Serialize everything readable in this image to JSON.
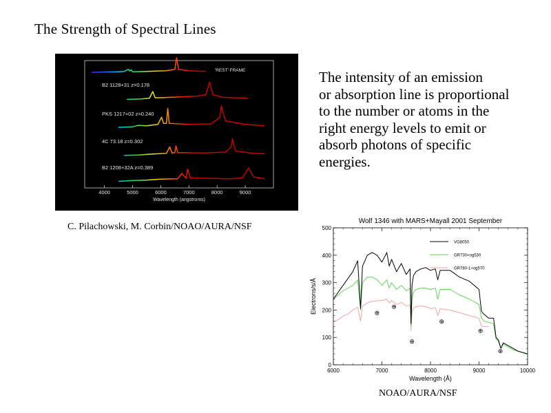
{
  "slide": {
    "title": "The Strength of Spectral Lines",
    "body_lines": [
      "The intensity of an emission",
      "or absorption line is proportional",
      "to the number or atoms in the",
      "right energy levels to emit or",
      "absorb photons of specific",
      "energies."
    ],
    "credit_left": "C. Pilachowski, M. Corbin/NOAO/AURA/NSF",
    "credit_right": "NOAO/AURA/NSF"
  },
  "chart_data": [
    {
      "type": "line",
      "title": "",
      "xlabel": "Wavelength (angstroms)",
      "ylabel": "",
      "xlim": [
        3300,
        10000
      ],
      "x_ticks": [
        4000,
        5000,
        6000,
        7000,
        8000,
        9000
      ],
      "annotation": "'REST' FRAME",
      "grid": false,
      "background": "#000000",
      "series": [
        {
          "name": "",
          "x": [
            3550,
            4000,
            4500,
            4700,
            4850,
            4900,
            4950,
            5000,
            5500,
            6200,
            6500,
            6563,
            6630,
            7000,
            7600
          ],
          "y": [
            0.12,
            0.14,
            0.16,
            0.18,
            0.3,
            0.2,
            0.28,
            0.16,
            0.18,
            0.22,
            0.3,
            1.0,
            0.3,
            0.22,
            0.18
          ]
        },
        {
          "name": "B2 1128+31  z=0.178",
          "x": [
            4800,
            5300,
            5600,
            5716,
            5800,
            6000,
            7300,
            7600,
            7731,
            7850,
            8200,
            9100
          ],
          "y": [
            0.12,
            0.14,
            0.18,
            0.5,
            0.2,
            0.2,
            0.28,
            0.35,
            0.95,
            0.35,
            0.22,
            0.18
          ]
        },
        {
          "name": "PKS 1217+02  z=0.240",
          "x": [
            4500,
            5000,
            5200,
            5500,
            5900,
            6030,
            6100,
            6200,
            6250,
            6300,
            7000,
            7800,
            8100,
            8150,
            8300,
            9000,
            9700
          ],
          "y": [
            0.14,
            0.16,
            0.22,
            0.2,
            0.26,
            0.55,
            0.3,
            0.3,
            0.9,
            0.3,
            0.26,
            0.28,
            0.55,
            1.0,
            0.4,
            0.26,
            0.2
          ]
        },
        {
          "name": "4C 73.18  z=0.302",
          "x": [
            4700,
            5200,
            5600,
            5900,
            6200,
            6320,
            6400,
            6500,
            6540,
            6600,
            7500,
            8300,
            8500,
            8546,
            8650,
            9300,
            9700
          ],
          "y": [
            0.14,
            0.16,
            0.2,
            0.22,
            0.24,
            0.55,
            0.25,
            0.28,
            0.6,
            0.28,
            0.26,
            0.3,
            0.55,
            0.95,
            0.35,
            0.24,
            0.22
          ]
        },
        {
          "name": "B2 1208+32A  z=0.389",
          "x": [
            4500,
            5000,
            5500,
            6000,
            6600,
            6750,
            6900,
            6950,
            7050,
            7500,
            8500,
            8900,
            9116,
            9300,
            9700
          ],
          "y": [
            0.14,
            0.18,
            0.2,
            0.24,
            0.26,
            0.5,
            0.28,
            0.7,
            0.3,
            0.28,
            0.26,
            0.3,
            0.75,
            0.34,
            0.26
          ]
        }
      ]
    },
    {
      "type": "line",
      "title": "Wolf 1346 with   MARS+Mayall 2001 September",
      "xlabel": "Wavelength (Å)",
      "ylabel": "Electrons/s/Å",
      "xlim": [
        6000,
        10000
      ],
      "ylim": [
        0,
        500
      ],
      "x_ticks": [
        6000,
        7000,
        8000,
        9000,
        10000
      ],
      "y_ticks": [
        0,
        100,
        200,
        300,
        400,
        500
      ],
      "legend": "top-right",
      "grid": false,
      "telluric_marker": "⊕",
      "telluric_bands": [
        {
          "x": 6900,
          "y": 190
        },
        {
          "x": 7250,
          "y": 212
        },
        {
          "x": 7620,
          "y": 85
        },
        {
          "x": 8230,
          "y": 158
        },
        {
          "x": 9030,
          "y": 125
        },
        {
          "x": 9440,
          "y": 50
        }
      ],
      "series": [
        {
          "name": "VG8050",
          "color": "#000000",
          "x": [
            6000,
            6200,
            6400,
            6500,
            6560,
            6600,
            6700,
            6800,
            6900,
            7000,
            7100,
            7150,
            7200,
            7300,
            7400,
            7500,
            7580,
            7600,
            7620,
            7650,
            7700,
            7800,
            7900,
            8000,
            8100,
            8150,
            8200,
            8300,
            8400,
            8600,
            8800,
            9000,
            9050,
            9100,
            9200,
            9300,
            9350,
            9400,
            9450,
            9500,
            9600,
            9700,
            9800,
            10000
          ],
          "y": [
            240,
            290,
            340,
            380,
            205,
            360,
            400,
            410,
            400,
            375,
            410,
            360,
            385,
            340,
            370,
            330,
            350,
            150,
            290,
            325,
            340,
            350,
            355,
            345,
            350,
            310,
            345,
            345,
            345,
            320,
            305,
            275,
            195,
            185,
            170,
            170,
            100,
            90,
            60,
            80,
            70,
            60,
            50,
            40
          ]
        },
        {
          "name": "GR730+og530",
          "color": "#5fd65a",
          "x": [
            6000,
            6200,
            6400,
            6500,
            6560,
            6600,
            6700,
            6800,
            6900,
            7000,
            7100,
            7150,
            7200,
            7300,
            7400,
            7500,
            7580,
            7600,
            7620,
            7650,
            7700,
            7800,
            7900,
            8000,
            8100,
            8150,
            8200,
            8300,
            8400,
            8600,
            8800,
            9000,
            9050,
            9100,
            9200,
            9300,
            9350,
            9400,
            9450,
            9500,
            9600,
            9700,
            9800,
            10000
          ],
          "y": [
            240,
            270,
            290,
            310,
            200,
            300,
            320,
            320,
            310,
            290,
            310,
            280,
            300,
            275,
            290,
            270,
            280,
            140,
            240,
            265,
            275,
            280,
            280,
            275,
            280,
            240,
            275,
            275,
            275,
            255,
            240,
            220,
            170,
            160,
            155,
            150,
            95,
            85,
            60,
            75,
            65,
            55,
            50,
            38
          ]
        },
        {
          "name": "GR780-1+og570",
          "color": "#f2a2aa",
          "x": [
            6000,
            6100,
            6200,
            6300,
            6400,
            6500,
            6560,
            6600,
            6700,
            6800,
            6900,
            7000,
            7100,
            7150,
            7200,
            7300,
            7400,
            7500,
            7580,
            7600,
            7620,
            7650,
            7700,
            7800,
            7900,
            8000,
            8100,
            8150,
            8200,
            8300,
            8400,
            8600,
            8800,
            9000,
            9050,
            9100,
            9200
          ],
          "y": [
            155,
            165,
            178,
            185,
            200,
            210,
            160,
            215,
            225,
            232,
            234,
            235,
            240,
            225,
            235,
            220,
            228,
            215,
            218,
            125,
            190,
            208,
            212,
            215,
            212,
            205,
            208,
            180,
            205,
            202,
            200,
            190,
            180,
            170,
            140,
            140,
            140
          ]
        }
      ]
    }
  ]
}
